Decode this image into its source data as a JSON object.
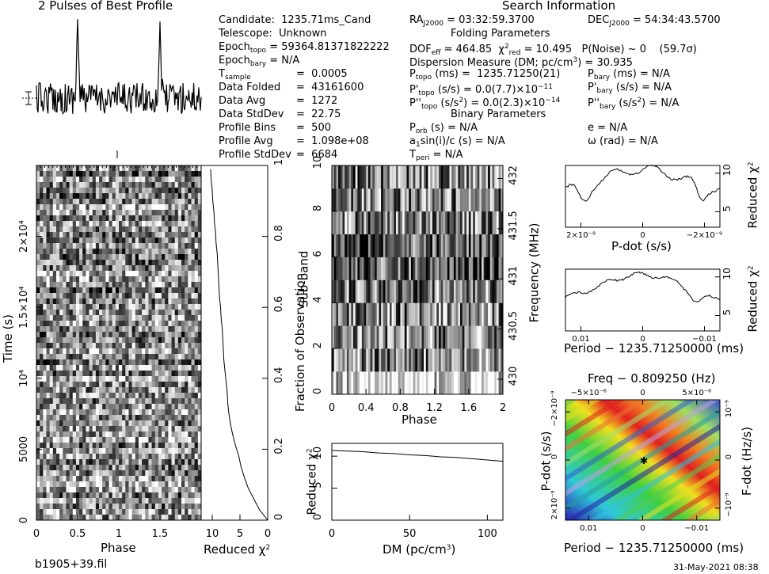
{
  "window_title": "2 Pulses of Best Profile",
  "search_heading": "Search Information",
  "file_label": "b1905+39.fil",
  "date_label": "31-May-2021 08:38",
  "candidate_info": {
    "candidate": "1235.71ms_Cand",
    "telescope": "Unknown",
    "epoch_topo": "59364.81371822222",
    "epoch_bary": "N/A",
    "t_sample": "0.0005",
    "data_folded": "43161600",
    "data_avg": "1272",
    "data_stddev": "22.75",
    "profile_bins": "500",
    "profile_avg": "1.098e+08",
    "profile_stddev": "6684"
  },
  "search_info": {
    "ra": "03:32:59.3700",
    "dec": "54:34:43.5700",
    "folding_heading": "Folding Parameters",
    "dof_eff": "464.85",
    "chi2_red": "10.495",
    "p_noise": "0",
    "sigma": "(59.7σ)",
    "dm": "30.935",
    "p_topo": "1235.71250(21)",
    "p_bary": "N/A",
    "pdot_topo": "0.0(7.7)×10",
    "pdot_topo_exp": "−11",
    "pdot_bary": "N/A",
    "pddot_topo": "0.0(2.3)×10",
    "pddot_topo_exp": "−14",
    "pddot_bary": "N/A",
    "binary_heading": "Binary Parameters",
    "p_orb": "N/A",
    "e": "N/A",
    "a1sini": "N/A",
    "omega": "N/A",
    "t_peri": "N/A"
  },
  "colors": {
    "ink": "#000000",
    "panel_bg": "#ffffff"
  },
  "chart_data": [
    {
      "type": "line",
      "title": "2 Pulses of Best Profile",
      "x_range": [
        0,
        2
      ],
      "peaks_at_phase": [
        0.5,
        1.5
      ]
    },
    {
      "type": "heatmap",
      "xlabel": "Phase",
      "ylabel": "Time (s)",
      "x_ticks": [
        "0",
        "0.5",
        "1",
        "1.5"
      ],
      "y_ticks": [
        "0",
        "5000",
        "10⁴",
        "1.5×10⁴",
        "2×10⁴"
      ],
      "xlim": [
        0,
        2
      ],
      "ylim": [
        0,
        25000
      ]
    },
    {
      "type": "line",
      "xlabel": "Reduced χ²",
      "ylabel": "Fraction of Observation",
      "x_ticks": [
        "10",
        "5",
        "0"
      ],
      "y_ticks": [
        "0",
        "0.2",
        "0.4",
        "0.6",
        "0.8",
        "1"
      ],
      "xlim": [
        12,
        0
      ],
      "ylim": [
        0,
        1
      ],
      "points": [
        [
          0,
          0
        ],
        [
          1.5,
          0.03
        ],
        [
          2.5,
          0.06
        ],
        [
          3.5,
          0.09
        ],
        [
          4.2,
          0.12
        ],
        [
          4.8,
          0.15
        ],
        [
          5.2,
          0.18
        ],
        [
          5.8,
          0.21
        ],
        [
          6.3,
          0.24
        ],
        [
          6.7,
          0.27
        ],
        [
          7.0,
          0.3
        ],
        [
          7.2,
          0.33
        ],
        [
          7.3,
          0.36
        ],
        [
          7.5,
          0.39
        ],
        [
          7.7,
          0.42
        ],
        [
          7.9,
          0.45
        ],
        [
          8.0,
          0.48
        ],
        [
          8.1,
          0.51
        ],
        [
          8.2,
          0.54
        ],
        [
          8.4,
          0.57
        ],
        [
          8.5,
          0.6
        ],
        [
          8.7,
          0.63
        ],
        [
          8.8,
          0.66
        ],
        [
          8.9,
          0.69
        ],
        [
          9.0,
          0.72
        ],
        [
          9.1,
          0.75
        ],
        [
          9.3,
          0.78
        ],
        [
          9.4,
          0.81
        ],
        [
          9.6,
          0.84
        ],
        [
          9.7,
          0.87
        ],
        [
          9.9,
          0.9
        ],
        [
          10.0,
          0.93
        ],
        [
          10.2,
          0.96
        ],
        [
          10.3,
          0.99
        ]
      ]
    },
    {
      "type": "heatmap",
      "xlabel": "Phase",
      "ylabel": "Sub-band",
      "ylabel_right": "Frequency (MHz)",
      "x_ticks": [
        "0",
        "0.4",
        "0.8",
        "1.2",
        "1.6",
        "2"
      ],
      "y_ticks": [
        "0",
        "2",
        "4",
        "6",
        "8",
        "10"
      ],
      "y_ticks_right": [
        "430",
        "430.5",
        "431",
        "431.5",
        "432"
      ],
      "xlim": [
        0,
        2
      ],
      "ylim": [
        0,
        10
      ]
    },
    {
      "type": "line",
      "xlabel": "DM (pc/cm³)",
      "ylabel": "Reduced χ²",
      "x_ticks": [
        "0",
        "50",
        "100"
      ],
      "y_ticks": [
        "0",
        "5",
        "10"
      ],
      "xlim": [
        0,
        110
      ],
      "ylim": [
        0,
        12
      ],
      "points": [
        [
          0,
          10.9
        ],
        [
          10,
          10.8
        ],
        [
          20,
          10.7
        ],
        [
          30,
          10.5
        ],
        [
          40,
          10.4
        ],
        [
          50,
          10.2
        ],
        [
          60,
          10.1
        ],
        [
          70,
          9.9
        ],
        [
          80,
          9.8
        ],
        [
          90,
          9.6
        ],
        [
          100,
          9.4
        ],
        [
          110,
          9.2
        ]
      ]
    },
    {
      "type": "line",
      "xlabel": "P-dot (s/s)",
      "ylabel": "Reduced χ²",
      "x_ticks": [
        "2×10⁻⁹",
        "0",
        "−2×10⁻⁹"
      ],
      "y_ticks": [
        "5",
        "10"
      ],
      "ylim": [
        3,
        11
      ]
    },
    {
      "type": "line",
      "xlabel": "Period − 1235.71250000 (ms)",
      "ylabel": "Reduced χ²",
      "x_ticks": [
        "0.01",
        "0",
        "−0.01"
      ],
      "y_ticks": [
        "5",
        "10"
      ],
      "ylim": [
        3,
        11
      ]
    },
    {
      "type": "heatmap",
      "title": "Freq − 0.809250 (Hz)",
      "xlabel": "Period − 1235.71250000 (ms)",
      "ylabel": "P-dot (s/s)",
      "ylabel_right": "F-dot (Hz/s)",
      "x_ticks": [
        "0.01",
        "0",
        "−0.01"
      ],
      "x_ticks_top": [
        "−5×10⁻⁶",
        "0",
        "5×10⁻⁶"
      ],
      "y_ticks": [
        "2×10⁻⁹",
        "0",
        "−2×10⁻⁹"
      ],
      "y_ticks_right": [
        "−10⁻⁹",
        "0",
        "10⁻⁹"
      ]
    }
  ]
}
